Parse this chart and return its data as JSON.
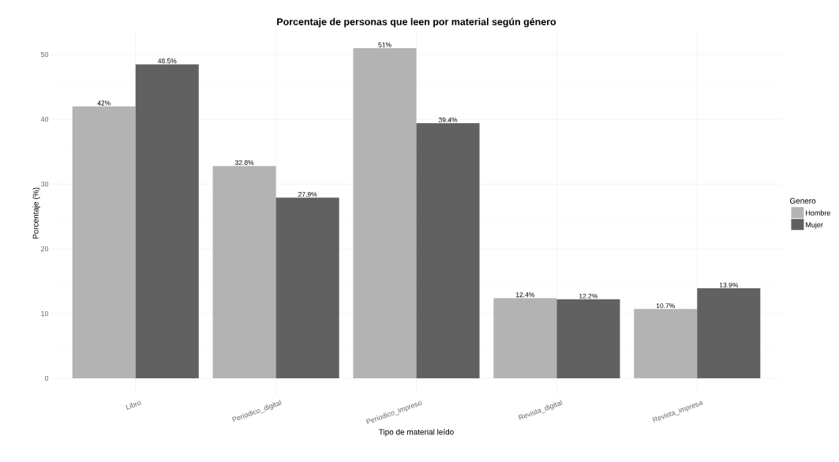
{
  "chart_data": {
    "type": "bar",
    "title": "Porcentaje de personas que leen por material según género",
    "xlabel": "Tipo de material leído",
    "ylabel": "Porcentaje (%)",
    "legend_title": "Genero",
    "categories": [
      "Libro",
      "Periodico_digital",
      "Periodico_impreso",
      "Revista_digital",
      "Revista_impresa"
    ],
    "series": [
      {
        "name": "Hombre",
        "color": "#b3b3b3",
        "values": [
          42,
          32.8,
          51,
          12.4,
          10.7
        ],
        "value_labels": [
          "42%",
          "32.8%",
          "51%",
          "12.4%",
          "10.7%"
        ]
      },
      {
        "name": "Mujer",
        "color": "#616161",
        "values": [
          48.5,
          27.9,
          39.4,
          12.2,
          13.9
        ],
        "value_labels": [
          "48.5%",
          "27.9%",
          "39.4%",
          "12.2%",
          "13.9%"
        ]
      }
    ],
    "ylim": [
      -2.55,
      53.55
    ],
    "yticks": [
      0,
      10,
      20,
      30,
      40,
      50
    ],
    "grid": true,
    "legend": "right"
  }
}
